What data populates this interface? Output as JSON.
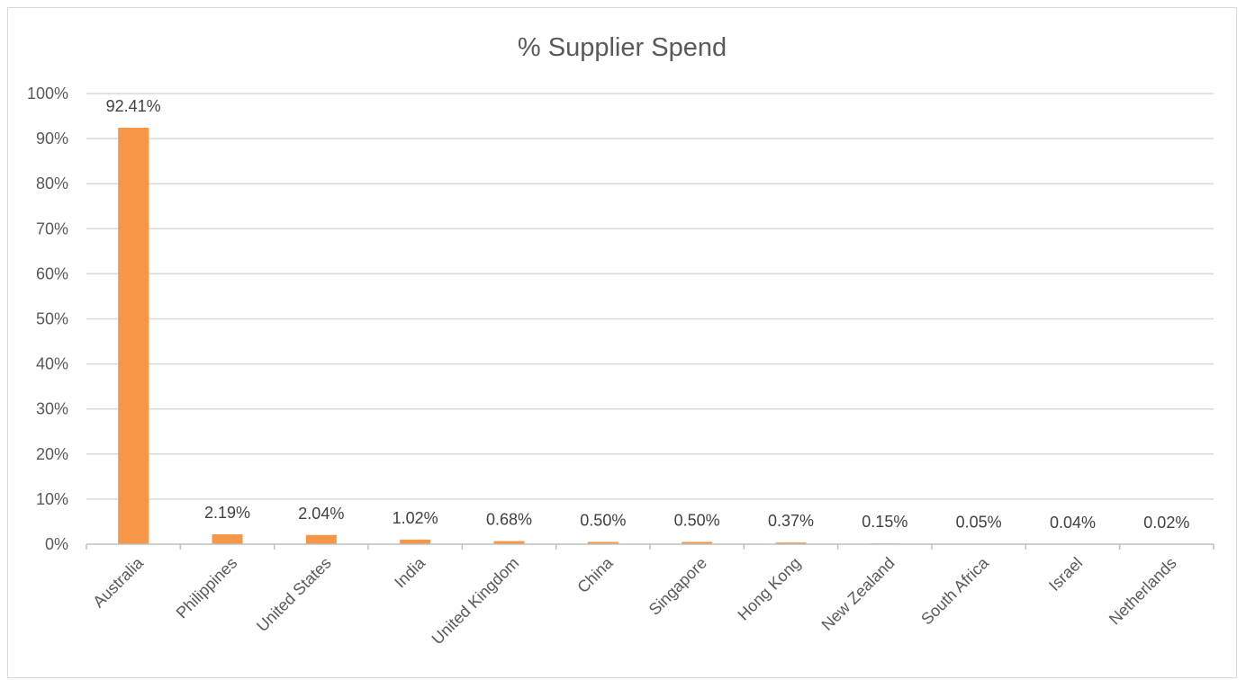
{
  "chart_data": {
    "type": "bar",
    "title": "% Supplier Spend",
    "categories": [
      "Australia",
      "Philippines",
      "United States",
      "India",
      "United Kingdom",
      "China",
      "Singapore",
      "Hong Kong",
      "New Zealand",
      "South Africa",
      "Israel",
      "Netherlands"
    ],
    "values": [
      92.41,
      2.19,
      2.04,
      1.02,
      0.68,
      0.5,
      0.5,
      0.37,
      0.15,
      0.05,
      0.04,
      0.02
    ],
    "data_labels": [
      "92.41%",
      "2.19%",
      "2.04%",
      "1.02%",
      "0.68%",
      "0.50%",
      "0.50%",
      "0.37%",
      "0.15%",
      "0.05%",
      "0.04%",
      "0.02%"
    ],
    "yticks": [
      "0%",
      "10%",
      "20%",
      "30%",
      "40%",
      "50%",
      "60%",
      "70%",
      "80%",
      "90%",
      "100%"
    ],
    "ylim": [
      0,
      100
    ],
    "grid": true,
    "legend": "none",
    "xlabel": "",
    "ylabel": "",
    "bar_color": "#f79646",
    "grid_color": "#d9d9d9"
  }
}
